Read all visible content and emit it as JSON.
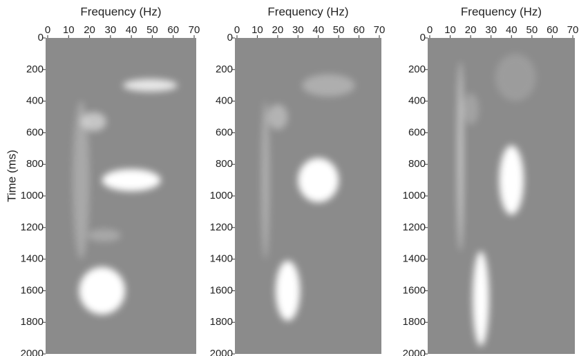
{
  "chart_data": [
    {
      "type": "spectrogram",
      "title": "Frequency (Hz)",
      "ylabel": "Time (ms)",
      "xlim": [
        0,
        70
      ],
      "xticks": [
        0,
        10,
        20,
        30,
        40,
        50,
        60,
        70
      ],
      "ylim": [
        0,
        2000
      ],
      "yticks": [
        0,
        200,
        400,
        600,
        800,
        1000,
        1200,
        1400,
        1600,
        1800,
        2000
      ],
      "y_inverted": true,
      "background": "#8b8b8b",
      "blobs": [
        {
          "freq": 16,
          "time": 900,
          "rx": 4,
          "ry": 500,
          "intensity": 0.25
        },
        {
          "freq": 22,
          "time": 530,
          "rx": 6,
          "ry": 60,
          "intensity": 0.5
        },
        {
          "freq": 27,
          "time": 1250,
          "rx": 8,
          "ry": 40,
          "intensity": 0.25
        },
        {
          "freq": 49,
          "time": 300,
          "rx": 13,
          "ry": 40,
          "intensity": 0.8
        },
        {
          "freq": 40,
          "time": 900,
          "rx": 14,
          "ry": 70,
          "intensity": 1.0
        },
        {
          "freq": 26,
          "time": 1600,
          "rx": 11,
          "ry": 150,
          "intensity": 1.0
        }
      ]
    },
    {
      "type": "spectrogram",
      "title": "Frequency (Hz)",
      "xlim": [
        0,
        70
      ],
      "xticks": [
        0,
        10,
        20,
        30,
        40,
        50,
        60,
        70
      ],
      "ylim": [
        0,
        2000
      ],
      "yticks": [
        0,
        200,
        400,
        600,
        800,
        1000,
        1200,
        1400,
        1600,
        1800,
        2000
      ],
      "y_inverted": true,
      "background": "#8b8b8b",
      "blobs": [
        {
          "freq": 14,
          "time": 900,
          "rx": 2,
          "ry": 500,
          "intensity": 0.3
        },
        {
          "freq": 20,
          "time": 500,
          "rx": 5,
          "ry": 80,
          "intensity": 0.35
        },
        {
          "freq": 45,
          "time": 300,
          "rx": 13,
          "ry": 70,
          "intensity": 0.3
        },
        {
          "freq": 40,
          "time": 900,
          "rx": 10,
          "ry": 140,
          "intensity": 1.0
        },
        {
          "freq": 25,
          "time": 1600,
          "rx": 6,
          "ry": 190,
          "intensity": 1.0
        }
      ]
    },
    {
      "type": "spectrogram",
      "title": "Frequency (Hz)",
      "xlim": [
        0,
        70
      ],
      "xticks": [
        0,
        10,
        20,
        30,
        40,
        50,
        60,
        70
      ],
      "ylim": [
        0,
        2000
      ],
      "yticks": [
        0,
        200,
        400,
        600,
        800,
        1000,
        1200,
        1400,
        1600,
        1800,
        2000
      ],
      "y_inverted": true,
      "background": "#8b8b8b",
      "blobs": [
        {
          "freq": 42,
          "time": 250,
          "rx": 10,
          "ry": 150,
          "intensity": 0.15
        },
        {
          "freq": 20,
          "time": 450,
          "rx": 4,
          "ry": 100,
          "intensity": 0.2
        },
        {
          "freq": 15,
          "time": 750,
          "rx": 1.5,
          "ry": 600,
          "intensity": 0.5
        },
        {
          "freq": 40,
          "time": 900,
          "rx": 6,
          "ry": 220,
          "intensity": 1.0
        },
        {
          "freq": 25,
          "time": 1650,
          "rx": 4,
          "ry": 300,
          "intensity": 1.0
        }
      ]
    }
  ]
}
